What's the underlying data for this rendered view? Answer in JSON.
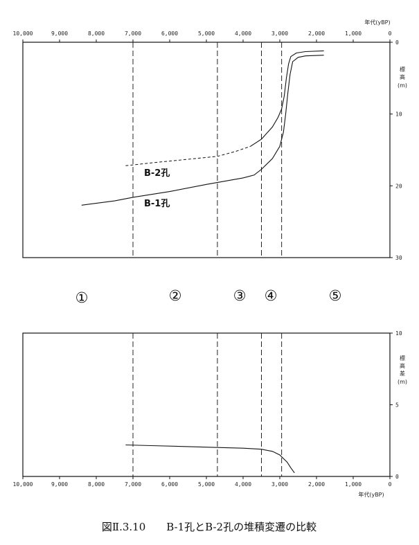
{
  "chart_data": [
    {
      "type": "line",
      "x_label": "年代(yBP)",
      "y_label": "標高(m)",
      "x_ticks": [
        "10,000",
        "9,000",
        "8,000",
        "7,000",
        "6,000",
        "5,000",
        "4,000",
        "3,000",
        "2,000",
        "1,000",
        "0"
      ],
      "y_ticks": [
        "0",
        "10",
        "20",
        "30"
      ],
      "xlim": [
        10000,
        0
      ],
      "ylim": [
        0,
        30
      ],
      "y_inverted": true,
      "grid": false,
      "phase_boundaries": [
        7000,
        4700,
        3500,
        2950
      ],
      "series": [
        {
          "name": "B-2孔",
          "style": "dashed-then-solid",
          "dashed_until": 3700,
          "points": [
            [
              7200,
              17.2
            ],
            [
              6500,
              16.8
            ],
            [
              5500,
              16.3
            ],
            [
              4700,
              15.9
            ],
            [
              4200,
              15.2
            ],
            [
              3800,
              14.5
            ],
            [
              3500,
              13.5
            ],
            [
              3200,
              11.8
            ],
            [
              3050,
              10.5
            ],
            [
              2950,
              9.3
            ],
            [
              2880,
              7.5
            ],
            [
              2820,
              5.0
            ],
            [
              2760,
              3.0
            ],
            [
              2700,
              2.0
            ],
            [
              2550,
              1.5
            ],
            [
              2300,
              1.3
            ],
            [
              1800,
              1.2
            ]
          ]
        },
        {
          "name": "B-1孔",
          "style": "solid",
          "points": [
            [
              8400,
              22.7
            ],
            [
              7500,
              22.1
            ],
            [
              7000,
              21.6
            ],
            [
              6000,
              20.8
            ],
            [
              5000,
              19.8
            ],
            [
              4000,
              18.9
            ],
            [
              3700,
              18.5
            ],
            [
              3500,
              17.7
            ],
            [
              3200,
              16.2
            ],
            [
              3000,
              14.5
            ],
            [
              2900,
              12.5
            ],
            [
              2840,
              10.0
            ],
            [
              2780,
              7.0
            ],
            [
              2720,
              4.5
            ],
            [
              2650,
              2.7
            ],
            [
              2500,
              2.1
            ],
            [
              2300,
              1.9
            ],
            [
              1800,
              1.8
            ]
          ]
        }
      ]
    },
    {
      "type": "line",
      "x_label": "年代(yBP)",
      "y_label": "標高差(m)",
      "x_ticks": [
        "10,000",
        "9,000",
        "8,000",
        "7,000",
        "6,000",
        "5,000",
        "4,000",
        "3,000",
        "2,000",
        "1,000",
        "0"
      ],
      "y_ticks": [
        "10",
        "5",
        "0"
      ],
      "xlim": [
        10000,
        0
      ],
      "ylim": [
        0,
        10
      ],
      "grid": false,
      "phase_boundaries": [
        7000,
        4700,
        3500,
        2950
      ],
      "series": [
        {
          "name": "",
          "style": "solid",
          "points": [
            [
              7200,
              2.2
            ],
            [
              6500,
              2.15
            ],
            [
              5500,
              2.08
            ],
            [
              4700,
              2.02
            ],
            [
              4000,
              1.97
            ],
            [
              3500,
              1.9
            ],
            [
              3200,
              1.75
            ],
            [
              3000,
              1.5
            ],
            [
              2800,
              1.0
            ],
            [
              2700,
              0.6
            ],
            [
              2600,
              0.25
            ]
          ]
        }
      ]
    }
  ],
  "zones": [
    "①",
    "②",
    "③",
    "④",
    "⑤"
  ],
  "caption": "図Ⅱ.3.10　　B-1孔とB-2孔の堆積変遷の比較"
}
